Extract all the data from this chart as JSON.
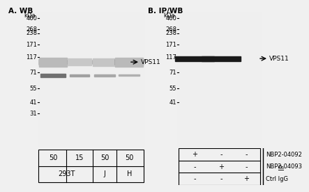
{
  "fig_bg": "#f0f0f0",
  "gel_bg": "#e8e8e8",
  "panel_A_title": "A. WB",
  "panel_B_title": "B. IP/WB",
  "kda_label": "kDa",
  "marker_y": {
    "460": 0.92,
    "268": 0.84,
    "238": 0.812,
    "171": 0.73,
    "117": 0.64,
    "71": 0.53,
    "55": 0.415,
    "41": 0.315,
    "31": 0.235
  },
  "marker_y_B": {
    "460": 0.92,
    "268": 0.84,
    "238": 0.812,
    "171": 0.73,
    "117": 0.64,
    "71": 0.53,
    "55": 0.415,
    "41": 0.315
  },
  "markers_A": [
    460,
    268,
    238,
    171,
    117,
    71,
    55,
    41,
    31
  ],
  "markers_B": [
    460,
    268,
    238,
    171,
    117,
    71,
    55,
    41
  ],
  "vps11_label": "VPS11",
  "lane_table_values": [
    "50",
    "15",
    "50",
    "50"
  ],
  "cell_line_labels": [
    "293T",
    "J",
    "H"
  ],
  "ip_rows": [
    [
      "+",
      "-",
      "-",
      "NBP2-04092"
    ],
    [
      "-",
      "+",
      "-",
      "NBP2-04093"
    ],
    [
      "-",
      "-",
      "+",
      "Ctrl IgG"
    ]
  ],
  "ip_right_label": "IP"
}
